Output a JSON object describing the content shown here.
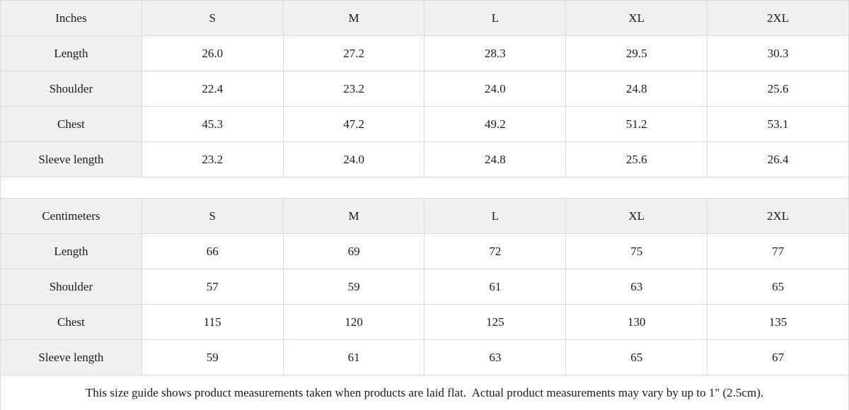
{
  "theme": {
    "header_bg": "#f0f0f0",
    "cell_bg": "#ffffff",
    "border_color": "#d9d9d9",
    "text_color": "#1a1a1a"
  },
  "size_guide": {
    "tables": [
      {
        "unit": "Inches",
        "sizes": [
          "S",
          "M",
          "L",
          "XL",
          "2XL"
        ],
        "rows": [
          {
            "label": "Length",
            "values": [
              "26.0",
              "27.2",
              "28.3",
              "29.5",
              "30.3"
            ]
          },
          {
            "label": "Shoulder",
            "values": [
              "22.4",
              "23.2",
              "24.0",
              "24.8",
              "25.6"
            ]
          },
          {
            "label": "Chest",
            "values": [
              "45.3",
              "47.2",
              "49.2",
              "51.2",
              "53.1"
            ]
          },
          {
            "label": "Sleeve length",
            "values": [
              "23.2",
              "24.0",
              "24.8",
              "25.6",
              "26.4"
            ]
          }
        ]
      },
      {
        "unit": "Centimeters",
        "sizes": [
          "S",
          "M",
          "L",
          "XL",
          "2XL"
        ],
        "rows": [
          {
            "label": "Length",
            "values": [
              "66",
              "69",
              "72",
              "75",
              "77"
            ]
          },
          {
            "label": "Shoulder",
            "values": [
              "57",
              "59",
              "61",
              "63",
              "65"
            ]
          },
          {
            "label": "Chest",
            "values": [
              "115",
              "120",
              "125",
              "130",
              "135"
            ]
          },
          {
            "label": "Sleeve length",
            "values": [
              "59",
              "61",
              "63",
              "65",
              "67"
            ]
          }
        ]
      }
    ],
    "footnote": "This size guide shows product measurements taken when products are laid flat.  Actual product measurements may vary by up to 1\" (2.5cm)."
  }
}
